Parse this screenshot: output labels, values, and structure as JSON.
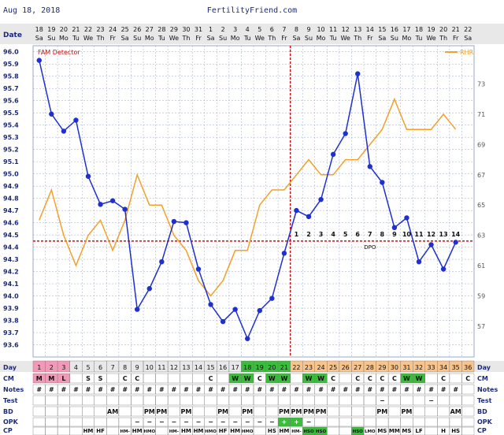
{
  "header": {
    "date": "Aug 18, 2018",
    "site": "FertilityFriend.com"
  },
  "legend": {
    "fam": "FAM Detector",
    "rhr": "RHR"
  },
  "colors": {
    "bbt": "#1f2fd0",
    "rhr": "#f2a12a",
    "fam_line": "#cc1111",
    "grid": "#9aa7c6",
    "plot_bg": "#ffffff",
    "header_bg": "#e8e8e8",
    "label_blue": "#1c2a7d",
    "green_cell": "#3dbb3d",
    "pink_cell": "#f09ab8",
    "orange_cell": "#f7c48e",
    "cell_border": "#777777"
  },
  "rows": {
    "date": "Date",
    "day": "Day",
    "cm": "CM",
    "notes": "Notes",
    "test": "Test",
    "bd": "BD",
    "opk": "OPK",
    "cp": "CP"
  },
  "chart_data": {
    "type": "line",
    "y_left": {
      "min": 93.5,
      "max": 96.05,
      "ticks": [
        "96.0",
        "95.9",
        "95.8",
        "95.7",
        "95.6",
        "95.5",
        "95.4",
        "95.3",
        "95.2",
        "95.1",
        "95.0",
        "94.9",
        "94.8",
        "94.7",
        "94.6",
        "94.5",
        "94.4",
        "94.3",
        "94.2",
        "94.1",
        "94.0",
        "93.9",
        "93.8",
        "93.7",
        "93.6"
      ]
    },
    "y_right": {
      "ticks": [
        "73",
        "71",
        "69",
        "67",
        "65",
        "63",
        "61",
        "59",
        "57"
      ]
    },
    "date_top": [
      "18",
      "19",
      "20",
      "21",
      "22",
      "23",
      "24",
      "25",
      "26",
      "27",
      "28",
      "29",
      "30",
      "31",
      "1",
      "2",
      "3",
      "4",
      "5",
      "6",
      "7",
      "8",
      "9",
      "10",
      "11",
      "12",
      "13",
      "14",
      "15",
      "16",
      "17",
      "18",
      "19",
      "20",
      "21",
      "22"
    ],
    "weekdays": [
      "Sa",
      "Su",
      "Mo",
      "Tu",
      "We",
      "Th",
      "Fr",
      "Sa",
      "Su",
      "Mo",
      "Tu",
      "We",
      "Th",
      "Fr",
      "Sa",
      "Su",
      "Mo",
      "Tu",
      "We",
      "Th",
      "Fr",
      "Sa",
      "Su",
      "Mo",
      "Tu",
      "We",
      "Th",
      "Fr",
      "Sa",
      "Su",
      "Mo",
      "Tu",
      "We",
      "Th",
      "Fr",
      "Sa"
    ],
    "days": [
      "1",
      "2",
      "3",
      "4",
      "5",
      "6",
      "7",
      "8",
      "9",
      "10",
      "11",
      "12",
      "13",
      "14",
      "15",
      "16",
      "17",
      "18",
      "19",
      "20",
      "21",
      "22",
      "23",
      "24",
      "25",
      "26",
      "27",
      "28",
      "29",
      "30",
      "31",
      "32",
      "33",
      "34",
      "35",
      "36"
    ],
    "bbt": [
      95.93,
      95.49,
      95.35,
      95.44,
      94.98,
      94.75,
      94.78,
      94.71,
      93.89,
      94.06,
      94.28,
      94.61,
      94.6,
      94.22,
      93.93,
      93.79,
      93.89,
      93.65,
      93.88,
      93.98,
      94.35,
      94.7,
      94.65,
      94.79,
      95.16,
      95.33,
      95.82,
      95.06,
      94.93,
      94.56,
      94.64,
      94.28,
      94.42,
      94.22,
      94.44,
      null
    ],
    "rhr": [
      64,
      66,
      63,
      61,
      63,
      64,
      62,
      64,
      67,
      65,
      65,
      63,
      62,
      60,
      59,
      60,
      62,
      62,
      65,
      66,
      66,
      67,
      68,
      67,
      67,
      68,
      68,
      69,
      70,
      72,
      70,
      70,
      70,
      71,
      70,
      null
    ],
    "fam": {
      "day": 21,
      "temp": 94.45,
      "label_dpo": "DPO"
    },
    "dpo_labels": [
      "1",
      "2",
      "3",
      "4",
      "5",
      "6",
      "7",
      "8",
      "9",
      "10",
      "11",
      "12",
      "13",
      "14"
    ],
    "day_colors": [
      "pink",
      "pink",
      "pink",
      "none",
      "none",
      "none",
      "none",
      "none",
      "none",
      "none",
      "none",
      "none",
      "none",
      "none",
      "none",
      "none",
      "none",
      "green",
      "green",
      "green",
      "green",
      "orange",
      "orange",
      "orange",
      "orange",
      "orange",
      "orange",
      "orange",
      "orange",
      "orange",
      "orange",
      "orange",
      "orange",
      "orange",
      "orange",
      "orange"
    ],
    "cm": [
      "M",
      "M",
      "L",
      "",
      "S",
      "S",
      "",
      "C",
      "C",
      "",
      "",
      "",
      "",
      "",
      "C",
      "",
      "W",
      "W",
      "C",
      "W",
      "W",
      "",
      "W",
      "W",
      "C",
      "",
      "C",
      "C",
      "C",
      "C",
      "W",
      "W",
      "",
      "C",
      "",
      "C"
    ],
    "cm_colors": [
      "pink",
      "pink",
      "pink",
      "none",
      "none",
      "none",
      "none",
      "none",
      "none",
      "none",
      "none",
      "none",
      "none",
      "none",
      "none",
      "none",
      "green",
      "green",
      "none",
      "green",
      "green",
      "none",
      "green",
      "green",
      "none",
      "none",
      "none",
      "none",
      "none",
      "none",
      "green",
      "green",
      "none",
      "none",
      "none",
      "none"
    ],
    "notes": [
      "#",
      "#",
      "#",
      "#",
      "#",
      "#",
      "#",
      "#",
      "#",
      "#",
      "#",
      "#",
      "#",
      "#",
      "#",
      "#",
      "#",
      "#",
      "#",
      "#",
      "#",
      "#",
      "#",
      "#",
      "#",
      "#",
      "#",
      "#",
      "#",
      "#",
      "#",
      "#",
      "#",
      "#",
      "#",
      "#"
    ],
    "notes_mask": [
      1,
      1,
      1,
      1,
      1,
      1,
      1,
      1,
      1,
      1,
      1,
      1,
      1,
      1,
      1,
      1,
      1,
      1,
      1,
      1,
      1,
      1,
      1,
      1,
      1,
      1,
      1,
      1,
      1,
      1,
      1,
      1,
      1,
      1,
      1,
      0
    ],
    "bd": [
      "",
      "",
      "",
      "",
      "",
      "",
      "AM",
      "",
      "",
      "PM",
      "PM",
      "",
      "PM",
      "",
      "",
      "PM",
      "",
      "PM",
      "",
      "",
      "PM",
      "PM",
      "PM",
      "PM",
      "",
      "",
      "",
      "",
      "PM",
      "",
      "PM",
      "",
      "",
      "",
      "AM",
      ""
    ],
    "test": [
      "",
      "",
      "",
      "",
      "",
      "",
      "",
      "",
      "",
      "",
      "",
      "",
      "",
      "",
      "",
      "",
      "",
      "",
      "",
      "",
      "",
      "",
      "",
      "",
      "",
      "",
      "",
      "",
      "−",
      "",
      "",
      "",
      "−",
      "",
      "",
      ""
    ],
    "opk": [
      "",
      "",
      "",
      "",
      "",
      "",
      "",
      "",
      "−",
      "−",
      "−",
      "−",
      "−",
      "−",
      "−",
      "−",
      "−",
      "−",
      "−",
      "−",
      "+",
      "+",
      "−",
      "",
      "",
      "",
      "",
      "",
      "",
      "",
      "",
      "",
      "",
      "",
      "",
      ""
    ],
    "opk_colors": [
      "none",
      "none",
      "none",
      "none",
      "none",
      "none",
      "none",
      "none",
      "none",
      "none",
      "none",
      "none",
      "none",
      "none",
      "none",
      "none",
      "none",
      "none",
      "none",
      "none",
      "green",
      "green",
      "none",
      "none",
      "none",
      "none",
      "none",
      "none",
      "none",
      "none",
      "none",
      "none",
      "none",
      "none",
      "none",
      "none"
    ],
    "cp": [
      "",
      "",
      "",
      "",
      "HM",
      "HF",
      "",
      "HM-",
      "HM",
      "HMO",
      "",
      "HM-",
      "HM",
      "HM",
      "HMO",
      "HF",
      "HM",
      "HMO",
      "",
      "HS",
      "HM",
      "HM-",
      "HSO",
      "HSO",
      "",
      "",
      "HSO",
      "LMO",
      "MS",
      "MM",
      "MS",
      "LF",
      "",
      "H",
      "HS",
      ""
    ],
    "cp_colors": [
      "none",
      "none",
      "none",
      "none",
      "none",
      "none",
      "none",
      "none",
      "none",
      "none",
      "none",
      "none",
      "none",
      "none",
      "none",
      "none",
      "none",
      "none",
      "none",
      "none",
      "none",
      "none",
      "green",
      "green",
      "none",
      "none",
      "green",
      "none",
      "none",
      "none",
      "none",
      "none",
      "none",
      "none",
      "none",
      "none"
    ]
  }
}
